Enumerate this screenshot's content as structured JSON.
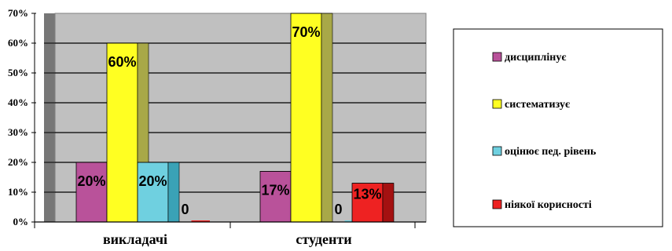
{
  "chart_data": {
    "type": "bar",
    "categories": [
      "викладачі",
      "студенти"
    ],
    "series": [
      {
        "name": "дисциплінує",
        "values": [
          20,
          17
        ],
        "labels": [
          "20%",
          "17%"
        ],
        "color": "#b9529a",
        "side": "#8a3270"
      },
      {
        "name": "систематизує",
        "values": [
          60,
          70
        ],
        "labels": [
          "60%",
          "70%"
        ],
        "color": "#ffff22",
        "side": "#a8a848"
      },
      {
        "name": "оцінює пед. рівень",
        "values": [
          20,
          0
        ],
        "labels": [
          "20%",
          "0"
        ],
        "color": "#6fd0e0",
        "side": "#3aa2b6"
      },
      {
        "name": "ніякої корисності",
        "values": [
          0,
          13
        ],
        "labels": [
          "0",
          "13%"
        ],
        "color": "#ee2222",
        "side": "#a41111"
      }
    ],
    "y_ticks": [
      "0%",
      "10%",
      "20%",
      "30%",
      "40%",
      "50%",
      "60%",
      "70%"
    ],
    "ylim": [
      0,
      70
    ],
    "grid": true,
    "legend_position": "right",
    "plot_background": "#c0c0c0"
  }
}
